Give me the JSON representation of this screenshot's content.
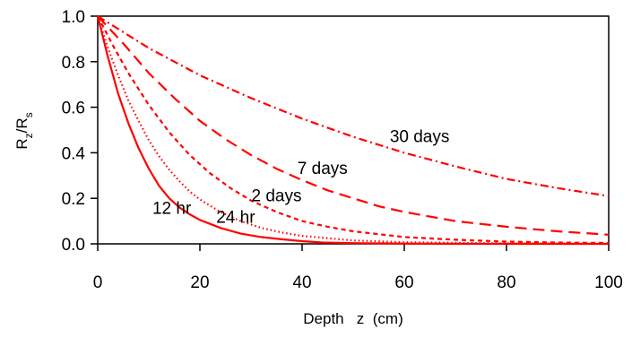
{
  "chart_data": {
    "type": "line",
    "xlabel": "Depth   z  (cm)",
    "ylabel": {
      "main": "R",
      "sub1": "z",
      "slash": "/R",
      "sub2": "s"
    },
    "xlim": [
      0,
      100
    ],
    "ylim": [
      0,
      1.0
    ],
    "xticks": [
      "0",
      "20",
      "40",
      "60",
      "80",
      "100"
    ],
    "yticks": [
      "0.0",
      "0.2",
      "0.4",
      "0.6",
      "0.8",
      "1.0"
    ],
    "grid": false,
    "line_color": "#ff0000",
    "series": [
      {
        "name": "12 hr",
        "dash": "solid",
        "x": [
          0,
          2,
          4,
          6,
          8,
          10,
          12,
          14,
          16,
          18,
          20,
          24,
          28,
          32,
          36,
          40,
          44,
          50,
          60,
          80,
          100
        ],
        "y": [
          1.0,
          0.82,
          0.66,
          0.53,
          0.42,
          0.33,
          0.255,
          0.2,
          0.16,
          0.13,
          0.105,
          0.07,
          0.045,
          0.03,
          0.02,
          0.012,
          0.006,
          0.003,
          0.001,
          0.0,
          0.0
        ]
      },
      {
        "name": "24 hr",
        "dash": "dotted",
        "x": [
          0,
          2,
          4,
          6,
          8,
          10,
          12,
          14,
          16,
          18,
          20,
          24,
          28,
          32,
          36,
          40,
          50,
          60,
          80,
          100
        ],
        "y": [
          1.0,
          0.86,
          0.74,
          0.63,
          0.54,
          0.455,
          0.385,
          0.325,
          0.275,
          0.23,
          0.195,
          0.14,
          0.1,
          0.07,
          0.05,
          0.035,
          0.015,
          0.007,
          0.002,
          0.0
        ]
      },
      {
        "name": "2 days",
        "dash": "short-dash",
        "x": [
          0,
          3,
          6,
          10,
          14,
          18,
          22,
          26,
          30,
          35,
          40,
          45,
          50,
          60,
          70,
          80,
          90,
          100
        ],
        "y": [
          1.0,
          0.87,
          0.75,
          0.61,
          0.49,
          0.39,
          0.31,
          0.245,
          0.19,
          0.14,
          0.1,
          0.075,
          0.055,
          0.03,
          0.018,
          0.01,
          0.006,
          0.004
        ]
      },
      {
        "name": "7 days",
        "dash": "long-dash",
        "x": [
          0,
          5,
          10,
          15,
          20,
          25,
          30,
          35,
          40,
          45,
          50,
          55,
          60,
          70,
          80,
          90,
          100
        ],
        "y": [
          1.0,
          0.88,
          0.75,
          0.64,
          0.54,
          0.46,
          0.39,
          0.33,
          0.28,
          0.235,
          0.2,
          0.165,
          0.14,
          0.1,
          0.075,
          0.055,
          0.04
        ]
      },
      {
        "name": "30 days",
        "dash": "dash-dot",
        "x": [
          0,
          5,
          10,
          15,
          20,
          30,
          40,
          50,
          60,
          70,
          80,
          90,
          100
        ],
        "y": [
          1.0,
          0.93,
          0.86,
          0.8,
          0.74,
          0.64,
          0.55,
          0.47,
          0.4,
          0.34,
          0.285,
          0.245,
          0.21
        ]
      }
    ],
    "annotations": [
      {
        "text": "30 days",
        "x": 63,
        "y": 0.475
      },
      {
        "text": "7 days",
        "x": 44,
        "y": 0.335
      },
      {
        "text": "2 days",
        "x": 35,
        "y": 0.215
      },
      {
        "text": "24 hr",
        "x": 27,
        "y": 0.12
      },
      {
        "text": "12 hr",
        "x": 14.5,
        "y": 0.16
      }
    ]
  }
}
